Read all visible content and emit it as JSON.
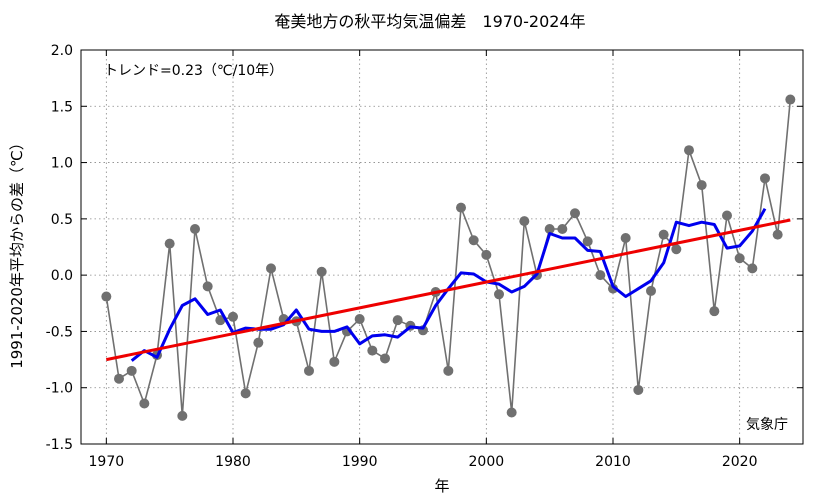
{
  "chart_data": {
    "type": "line",
    "title": "奄美地方の秋平均気温偏差　1970-2024年",
    "xlabel": "年",
    "ylabel": "1991-2020年平均からの差（℃）",
    "trend_label": "トレンド=0.23（℃/10年）",
    "source_label": "気象庁",
    "xlim": [
      1968,
      2025
    ],
    "ylim": [
      -1.5,
      2.0
    ],
    "x_ticks": [
      1970,
      1980,
      1990,
      2000,
      2010,
      2020
    ],
    "y_ticks": [
      -1.5,
      -1.0,
      -0.5,
      0.0,
      0.5,
      1.0,
      1.5,
      2.0
    ],
    "y_tick_labels": [
      "-1.5",
      "-1.0",
      "-0.5",
      "0.0",
      "0.5",
      "1.0",
      "1.5",
      "2.0"
    ],
    "grid": true,
    "colors": {
      "annual": "#707070",
      "moving_avg": "#0000ee",
      "trend": "#ee0000"
    },
    "series": [
      {
        "kind": "annual",
        "x": [
          1970,
          1971,
          1972,
          1973,
          1974,
          1975,
          1976,
          1977,
          1978,
          1979,
          1980,
          1981,
          1982,
          1983,
          1984,
          1985,
          1986,
          1987,
          1988,
          1989,
          1990,
          1991,
          1992,
          1993,
          1994,
          1995,
          1996,
          1997,
          1998,
          1999,
          2000,
          2001,
          2002,
          2003,
          2004,
          2005,
          2006,
          2007,
          2008,
          2009,
          2010,
          2011,
          2012,
          2013,
          2014,
          2015,
          2016,
          2017,
          2018,
          2019,
          2020,
          2021,
          2022,
          2023,
          2024
        ],
        "values": [
          -0.19,
          -0.92,
          -0.85,
          -1.14,
          -0.71,
          0.28,
          -1.25,
          0.41,
          -0.1,
          -0.4,
          -0.37,
          -1.05,
          -0.6,
          0.06,
          -0.39,
          -0.41,
          -0.85,
          0.03,
          -0.77,
          -0.5,
          -0.39,
          -0.67,
          -0.74,
          -0.4,
          -0.45,
          -0.49,
          -0.15,
          -0.85,
          0.6,
          0.31,
          0.18,
          -0.17,
          -1.22,
          0.48,
          0.0,
          0.41,
          0.41,
          0.55,
          0.3,
          0.0,
          -0.12,
          0.33,
          -1.02,
          -0.14,
          0.36,
          0.23,
          1.11,
          0.8,
          -0.32,
          0.53,
          0.15,
          0.06,
          0.86,
          0.36,
          1.56
        ]
      },
      {
        "kind": "moving_avg",
        "x": [
          1972,
          1973,
          1974,
          1975,
          1976,
          1977,
          1978,
          1979,
          1980,
          1981,
          1982,
          1983,
          1984,
          1985,
          1986,
          1987,
          1988,
          1989,
          1990,
          1991,
          1992,
          1993,
          1994,
          1995,
          1996,
          1997,
          1998,
          1999,
          2000,
          2001,
          2002,
          2003,
          2004,
          2005,
          2006,
          2007,
          2008,
          2009,
          2010,
          2011,
          2012,
          2013,
          2014,
          2015,
          2016,
          2017,
          2018,
          2019,
          2020,
          2021,
          2022
        ],
        "values": [
          -0.76,
          -0.67,
          -0.73,
          -0.48,
          -0.27,
          -0.21,
          -0.35,
          -0.31,
          -0.51,
          -0.47,
          -0.48,
          -0.48,
          -0.44,
          -0.31,
          -0.48,
          -0.5,
          -0.5,
          -0.46,
          -0.61,
          -0.54,
          -0.53,
          -0.55,
          -0.46,
          -0.47,
          -0.27,
          -0.12,
          0.02,
          0.01,
          -0.06,
          -0.08,
          -0.15,
          -0.1,
          0.01,
          0.37,
          0.33,
          0.33,
          0.22,
          0.21,
          -0.1,
          -0.19,
          -0.12,
          -0.05,
          0.11,
          0.47,
          0.44,
          0.47,
          0.45,
          0.24,
          0.26,
          0.39,
          0.59
        ]
      },
      {
        "kind": "trend",
        "x": [
          1970,
          2024
        ],
        "values": [
          -0.75,
          0.49
        ]
      }
    ]
  }
}
